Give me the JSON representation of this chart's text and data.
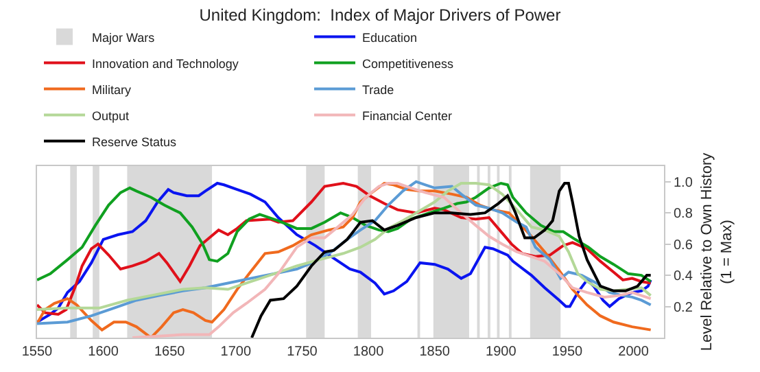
{
  "chart_data": {
    "type": "line",
    "title": "United Kingdom:  Index of Major Drivers of Power",
    "ylabel": "Level Relative to Own History\n(1 = Max)",
    "xlim": [
      1550,
      2023
    ],
    "xticks": [
      1550,
      1600,
      1650,
      1700,
      1750,
      1800,
      1850,
      1900,
      1950,
      2000
    ],
    "ylim": [
      0,
      1.1
    ],
    "yticks": [
      0.2,
      0.4,
      0.6,
      0.8,
      {
        "value": 1,
        "label": "1.0"
      }
    ],
    "grid": false,
    "legend": "top",
    "line_style": "solid",
    "marker": "none",
    "bands": [
      {
        "axis": "x",
        "from": 1575,
        "to": 1580,
        "label": "Major Wars",
        "color": "#d9d9d9"
      },
      {
        "axis": "x",
        "from": 1592,
        "to": 1597,
        "color": "#d9d9d9"
      },
      {
        "axis": "x",
        "from": 1618,
        "to": 1682,
        "color": "#d9d9d9"
      },
      {
        "axis": "x",
        "from": 1753,
        "to": 1767,
        "color": "#d9d9d9"
      },
      {
        "axis": "x",
        "from": 1792,
        "to": 1802,
        "color": "#d9d9d9"
      },
      {
        "axis": "x",
        "from": 1837,
        "to": 1839,
        "color": "#d9d9d9"
      },
      {
        "axis": "x",
        "from": 1849,
        "to": 1876,
        "color": "#d9d9d9"
      },
      {
        "axis": "x",
        "from": 1882,
        "to": 1884,
        "color": "#d9d9d9"
      },
      {
        "axis": "x",
        "from": 1890,
        "to": 1892,
        "color": "#d9d9d9"
      },
      {
        "axis": "x",
        "from": 1897,
        "to": 1899,
        "color": "#d9d9d9"
      },
      {
        "axis": "x",
        "from": 1906,
        "to": 1908,
        "color": "#d9d9d9"
      },
      {
        "axis": "x",
        "from": 1922,
        "to": 1945,
        "color": "#d9d9d9"
      }
    ],
    "series": [
      {
        "name": "Education",
        "color": "#0a14f0",
        "x": [
          1550,
          1560,
          1566,
          1573,
          1582,
          1591,
          1600,
          1611,
          1622,
          1632,
          1641,
          1649,
          1653,
          1663,
          1672,
          1677,
          1686,
          1691,
          1701,
          1711,
          1722,
          1732,
          1746,
          1760,
          1772,
          1786,
          1794,
          1805,
          1812,
          1819,
          1829,
          1839,
          1850,
          1860,
          1870,
          1877,
          1888,
          1894,
          1905,
          1909,
          1923,
          1933,
          1944,
          1949,
          1952,
          1958,
          1965,
          1970,
          1977,
          1982,
          1989,
          1999,
          2006,
          2011,
          2013
        ],
        "values": [
          0.1,
          0.15,
          0.19,
          0.29,
          0.36,
          0.48,
          0.63,
          0.66,
          0.68,
          0.75,
          0.87,
          0.95,
          0.93,
          0.91,
          0.91,
          0.94,
          0.99,
          0.98,
          0.95,
          0.92,
          0.87,
          0.77,
          0.66,
          0.59,
          0.52,
          0.44,
          0.42,
          0.35,
          0.28,
          0.3,
          0.36,
          0.48,
          0.47,
          0.44,
          0.38,
          0.41,
          0.58,
          0.57,
          0.53,
          0.49,
          0.4,
          0.32,
          0.24,
          0.2,
          0.2,
          0.29,
          0.37,
          0.33,
          0.24,
          0.2,
          0.25,
          0.29,
          0.3,
          0.33,
          0.37
        ]
      },
      {
        "name": "Innovation and Technology",
        "color": "#e0101a",
        "x": [
          1550,
          1556,
          1566,
          1572,
          1579,
          1584,
          1591,
          1596,
          1604,
          1613,
          1622,
          1632,
          1642,
          1648,
          1658,
          1665,
          1673,
          1680,
          1687,
          1694,
          1701,
          1708,
          1726,
          1732,
          1743,
          1757,
          1767,
          1781,
          1791,
          1801,
          1812,
          1822,
          1836,
          1850,
          1857,
          1870,
          1881,
          1891,
          1898,
          1908,
          1916,
          1926,
          1937,
          1947,
          1954,
          1965,
          1975,
          1985,
          1992,
          1999,
          2006,
          2013
        ],
        "values": [
          0.21,
          0.16,
          0.15,
          0.18,
          0.33,
          0.46,
          0.57,
          0.6,
          0.53,
          0.44,
          0.46,
          0.49,
          0.54,
          0.48,
          0.36,
          0.46,
          0.59,
          0.64,
          0.69,
          0.66,
          0.7,
          0.75,
          0.76,
          0.74,
          0.75,
          0.87,
          0.97,
          0.99,
          0.97,
          0.91,
          0.86,
          0.82,
          0.8,
          0.83,
          0.82,
          0.77,
          0.76,
          0.77,
          0.7,
          0.6,
          0.54,
          0.52,
          0.53,
          0.59,
          0.61,
          0.57,
          0.49,
          0.42,
          0.37,
          0.38,
          0.36,
          0.35
        ]
      },
      {
        "name": "Competitiveness",
        "color": "#10a020",
        "x": [
          1550,
          1560,
          1573,
          1584,
          1594,
          1604,
          1613,
          1620,
          1625,
          1636,
          1646,
          1658,
          1667,
          1675,
          1680,
          1686,
          1694,
          1701,
          1710,
          1718,
          1732,
          1746,
          1757,
          1767,
          1779,
          1788,
          1798,
          1808,
          1815,
          1822,
          1832,
          1846,
          1857,
          1867,
          1874,
          1881,
          1891,
          1900,
          1905,
          1909,
          1919,
          1930,
          1940,
          1947,
          1956,
          1966,
          1975,
          1985,
          1996,
          2006,
          2013
        ],
        "values": [
          0.37,
          0.41,
          0.5,
          0.58,
          0.72,
          0.85,
          0.93,
          0.96,
          0.94,
          0.9,
          0.85,
          0.8,
          0.71,
          0.6,
          0.5,
          0.49,
          0.54,
          0.68,
          0.76,
          0.79,
          0.75,
          0.7,
          0.7,
          0.74,
          0.8,
          0.77,
          0.72,
          0.69,
          0.68,
          0.7,
          0.76,
          0.8,
          0.83,
          0.86,
          0.87,
          0.9,
          0.96,
          0.99,
          0.98,
          0.9,
          0.8,
          0.72,
          0.68,
          0.68,
          0.63,
          0.58,
          0.52,
          0.47,
          0.41,
          0.4,
          0.36
        ]
      },
      {
        "name": "Military",
        "color": "#f06a1e",
        "x": [
          1550,
          1556,
          1563,
          1573,
          1580,
          1591,
          1599,
          1608,
          1617,
          1625,
          1636,
          1644,
          1653,
          1660,
          1668,
          1677,
          1682,
          1691,
          1701,
          1710,
          1722,
          1732,
          1743,
          1757,
          1770,
          1781,
          1788,
          1794,
          1801,
          1812,
          1819,
          1829,
          1839,
          1850,
          1863,
          1874,
          1884,
          1894,
          1906,
          1912,
          1923,
          1933,
          1944,
          1954,
          1965,
          1975,
          1985,
          1999,
          2013
        ],
        "values": [
          0.09,
          0.18,
          0.22,
          0.25,
          0.21,
          0.11,
          0.05,
          0.1,
          0.1,
          0.07,
          0.0,
          0.07,
          0.16,
          0.18,
          0.16,
          0.11,
          0.1,
          0.18,
          0.31,
          0.41,
          0.54,
          0.55,
          0.59,
          0.66,
          0.69,
          0.71,
          0.77,
          0.87,
          0.92,
          0.99,
          0.98,
          0.95,
          0.94,
          0.94,
          0.92,
          0.9,
          0.85,
          0.82,
          0.8,
          0.75,
          0.65,
          0.55,
          0.43,
          0.31,
          0.21,
          0.14,
          0.1,
          0.07,
          0.05
        ]
      },
      {
        "name": "Trade",
        "color": "#5b9bd5",
        "x": [
          1550,
          1573,
          1591,
          1608,
          1625,
          1642,
          1660,
          1677,
          1694,
          1711,
          1729,
          1746,
          1760,
          1772,
          1784,
          1794,
          1805,
          1815,
          1826,
          1836,
          1843,
          1850,
          1863,
          1870,
          1881,
          1891,
          1901,
          1912,
          1919,
          1926,
          1937,
          1945,
          1951,
          1961,
          1972,
          1982,
          1992,
          1999,
          2006,
          2013
        ],
        "values": [
          0.09,
          0.1,
          0.14,
          0.19,
          0.24,
          0.27,
          0.3,
          0.32,
          0.35,
          0.38,
          0.41,
          0.44,
          0.49,
          0.55,
          0.63,
          0.69,
          0.75,
          0.85,
          0.94,
          1.0,
          0.98,
          0.96,
          0.97,
          0.92,
          0.85,
          0.83,
          0.8,
          0.74,
          0.71,
          0.58,
          0.5,
          0.38,
          0.42,
          0.4,
          0.35,
          0.29,
          0.27,
          0.26,
          0.24,
          0.21
        ]
      },
      {
        "name": "Output",
        "color": "#b4d898",
        "x": [
          1550,
          1573,
          1597,
          1618,
          1636,
          1660,
          1677,
          1694,
          1708,
          1729,
          1746,
          1763,
          1781,
          1794,
          1805,
          1815,
          1826,
          1836,
          1850,
          1860,
          1870,
          1881,
          1891,
          1901,
          1912,
          1923,
          1933,
          1944,
          1951,
          1958,
          1965,
          1975,
          1985,
          1996,
          2006,
          2013
        ],
        "values": [
          0.18,
          0.19,
          0.19,
          0.24,
          0.27,
          0.31,
          0.32,
          0.31,
          0.35,
          0.41,
          0.46,
          0.5,
          0.54,
          0.58,
          0.63,
          0.7,
          0.75,
          0.8,
          0.87,
          0.94,
          0.99,
          0.99,
          0.98,
          0.92,
          0.82,
          0.71,
          0.69,
          0.65,
          0.55,
          0.41,
          0.36,
          0.31,
          0.3,
          0.31,
          0.32,
          0.27
        ]
      },
      {
        "name": "Financial Center",
        "color": "#f2b6b8",
        "x": [
          1622,
          1642,
          1660,
          1680,
          1687,
          1698,
          1708,
          1722,
          1732,
          1746,
          1757,
          1767,
          1777,
          1788,
          1798,
          1808,
          1815,
          1822,
          1832,
          1843,
          1857,
          1870,
          1881,
          1891,
          1901,
          1912,
          1923,
          1933,
          1944,
          1954,
          1965,
          1978,
          1989,
          1999,
          2006,
          2013
        ],
        "values": [
          0.0,
          0.01,
          0.02,
          0.02,
          0.07,
          0.16,
          0.22,
          0.31,
          0.41,
          0.58,
          0.64,
          0.64,
          0.71,
          0.79,
          0.9,
          0.97,
          0.99,
          0.99,
          0.96,
          0.93,
          0.9,
          0.8,
          0.72,
          0.65,
          0.6,
          0.55,
          0.52,
          0.49,
          0.41,
          0.32,
          0.29,
          0.26,
          0.27,
          0.29,
          0.27,
          0.25
        ]
      },
      {
        "name": "Reserve Status",
        "color": "#000000",
        "x": [
          1712,
          1719,
          1726,
          1736,
          1746,
          1757,
          1767,
          1774,
          1784,
          1794,
          1803,
          1812,
          1822,
          1836,
          1850,
          1863,
          1877,
          1888,
          1898,
          1905,
          1911,
          1918,
          1925,
          1933,
          1939,
          1944,
          1948,
          1951,
          1954,
          1959,
          1965,
          1975,
          1985,
          1994,
          2003,
          2010,
          2013
        ],
        "values": [
          0.0,
          0.14,
          0.24,
          0.25,
          0.33,
          0.46,
          0.55,
          0.56,
          0.63,
          0.74,
          0.75,
          0.69,
          0.72,
          0.77,
          0.8,
          0.8,
          0.79,
          0.8,
          0.86,
          0.91,
          0.8,
          0.64,
          0.64,
          0.69,
          0.75,
          0.94,
          0.99,
          0.99,
          0.87,
          0.65,
          0.5,
          0.33,
          0.3,
          0.3,
          0.33,
          0.4,
          0.4
        ]
      }
    ]
  }
}
